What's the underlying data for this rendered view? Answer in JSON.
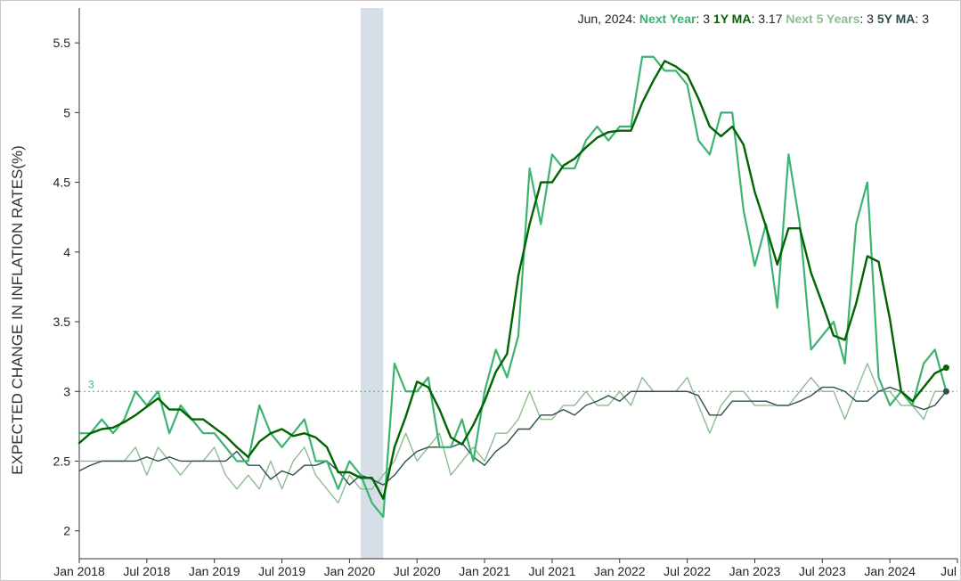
{
  "chart_data": {
    "type": "line",
    "ylabel": "EXPECTED CHANGE IN INFLATION RATES(%)",
    "ylim": [
      1.8,
      5.75
    ],
    "yticks": [
      2,
      2.5,
      3,
      3.5,
      4,
      4.5,
      5,
      5.5
    ],
    "xlim": [
      "2018-01",
      "2024-07"
    ],
    "xticks": [
      {
        "date": "2018-01",
        "label": "Jan 2018"
      },
      {
        "date": "2018-07",
        "label": "Jul 2018"
      },
      {
        "date": "2019-01",
        "label": "Jan 2019"
      },
      {
        "date": "2019-07",
        "label": "Jul 2019"
      },
      {
        "date": "2020-01",
        "label": "Jan 2020"
      },
      {
        "date": "2020-07",
        "label": "Jul 2020"
      },
      {
        "date": "2021-01",
        "label": "Jan 2021"
      },
      {
        "date": "2021-07",
        "label": "Jul 2021"
      },
      {
        "date": "2022-01",
        "label": "Jan 2022"
      },
      {
        "date": "2022-07",
        "label": "Jul 2022"
      },
      {
        "date": "2023-01",
        "label": "Jan 2023"
      },
      {
        "date": "2023-07",
        "label": "Jul 2023"
      },
      {
        "date": "2024-01",
        "label": "Jan 2024"
      },
      {
        "date": "2024-07",
        "label": "Jul"
      }
    ],
    "shaded_region": {
      "start": "2020-02",
      "end": "2020-04",
      "color": "#d6dee8"
    },
    "reference_line": {
      "value": 3,
      "label": "3",
      "color": "#4caf73"
    },
    "start_month": "2018-01",
    "legend": {
      "date": "Jun, 2024",
      "items": [
        {
          "name": "Next Year",
          "value": "3",
          "color": "#3cb371"
        },
        {
          "name": "1Y MA",
          "value": "3.17",
          "color": "#006400"
        },
        {
          "name": "Next 5 Years",
          "value": "3",
          "color": "#8fbc8f"
        },
        {
          "name": "5Y MA",
          "value": "3",
          "color": "#2f4f4f"
        }
      ]
    },
    "series": [
      {
        "name": "Next Year",
        "color": "#3cb371",
        "width": 2.2,
        "values": [
          2.7,
          2.7,
          2.8,
          2.7,
          2.8,
          3.0,
          2.9,
          3.0,
          2.7,
          2.9,
          2.8,
          2.7,
          2.7,
          2.6,
          2.5,
          2.5,
          2.9,
          2.7,
          2.6,
          2.7,
          2.8,
          2.5,
          2.5,
          2.3,
          2.5,
          2.4,
          2.2,
          2.1,
          3.2,
          3.0,
          3.0,
          3.1,
          2.6,
          2.6,
          2.8,
          2.5,
          3.0,
          3.3,
          3.1,
          3.4,
          4.6,
          4.2,
          4.7,
          4.6,
          4.6,
          4.8,
          4.9,
          4.8,
          4.9,
          4.9,
          5.4,
          5.4,
          5.3,
          5.3,
          5.2,
          4.8,
          4.7,
          5.0,
          5.0,
          4.3,
          3.9,
          4.2,
          3.6,
          4.7,
          4.2,
          3.3,
          3.4,
          3.5,
          3.2,
          4.2,
          4.5,
          3.1,
          2.9,
          3.0,
          2.9,
          3.2,
          3.3,
          3.0
        ]
      },
      {
        "name": "1Y MA",
        "color": "#006400",
        "width": 2.4,
        "values": [
          2.63,
          2.7,
          2.73,
          2.74,
          2.78,
          2.83,
          2.89,
          2.95,
          2.87,
          2.87,
          2.8,
          2.8,
          2.74,
          2.68,
          2.6,
          2.53,
          2.64,
          2.7,
          2.73,
          2.68,
          2.7,
          2.67,
          2.6,
          2.42,
          2.42,
          2.38,
          2.38,
          2.23,
          2.6,
          2.82,
          3.07,
          3.03,
          2.87,
          2.67,
          2.62,
          2.76,
          2.93,
          3.14,
          3.27,
          3.83,
          4.2,
          4.5,
          4.5,
          4.62,
          4.67,
          4.75,
          4.82,
          4.86,
          4.87,
          4.87,
          5.07,
          5.23,
          5.37,
          5.33,
          5.27,
          5.1,
          4.9,
          4.83,
          4.9,
          4.77,
          4.43,
          4.18,
          3.91,
          4.17,
          4.17,
          3.85,
          3.63,
          3.4,
          3.37,
          3.63,
          3.97,
          3.93,
          3.52,
          3.0,
          2.93,
          3.03,
          3.13,
          3.17
        ]
      },
      {
        "name": "Next 5 Years",
        "color": "#8fbc8f",
        "width": 1.4,
        "values": [
          2.5,
          2.5,
          2.5,
          2.5,
          2.5,
          2.6,
          2.4,
          2.6,
          2.5,
          2.4,
          2.5,
          2.5,
          2.6,
          2.4,
          2.3,
          2.4,
          2.3,
          2.5,
          2.3,
          2.5,
          2.6,
          2.4,
          2.3,
          2.2,
          2.4,
          2.3,
          2.3,
          2.4,
          2.5,
          2.7,
          2.5,
          2.6,
          2.7,
          2.4,
          2.5,
          2.6,
          2.5,
          2.7,
          2.7,
          2.8,
          3.0,
          2.8,
          2.8,
          2.9,
          2.9,
          3.0,
          2.9,
          2.9,
          3.0,
          2.9,
          3.1,
          3.0,
          3.0,
          3.0,
          3.1,
          2.9,
          2.7,
          2.9,
          3.0,
          3.0,
          2.9,
          2.9,
          2.9,
          2.9,
          3.0,
          3.1,
          3.0,
          3.0,
          2.8,
          3.0,
          3.2,
          3.0,
          3.0,
          2.9,
          2.9,
          2.8,
          3.0,
          3.0
        ]
      },
      {
        "name": "5Y MA",
        "color": "#2f4f4f",
        "width": 1.4,
        "values": [
          2.43,
          2.47,
          2.5,
          2.5,
          2.5,
          2.5,
          2.53,
          2.5,
          2.53,
          2.5,
          2.5,
          2.5,
          2.5,
          2.5,
          2.57,
          2.47,
          2.47,
          2.37,
          2.43,
          2.4,
          2.47,
          2.47,
          2.5,
          2.43,
          2.33,
          2.4,
          2.37,
          2.33,
          2.4,
          2.5,
          2.57,
          2.6,
          2.6,
          2.6,
          2.63,
          2.53,
          2.47,
          2.57,
          2.63,
          2.73,
          2.73,
          2.83,
          2.83,
          2.87,
          2.83,
          2.9,
          2.93,
          2.97,
          2.93,
          3.0,
          3.0,
          3.0,
          3.0,
          3.0,
          3.0,
          2.97,
          2.83,
          2.83,
          2.93,
          2.93,
          2.93,
          2.93,
          2.9,
          2.9,
          2.93,
          2.97,
          3.03,
          3.03,
          3.0,
          2.93,
          2.93,
          3.0,
          3.03,
          3.0,
          2.9,
          2.87,
          2.9,
          3.0
        ]
      }
    ]
  }
}
